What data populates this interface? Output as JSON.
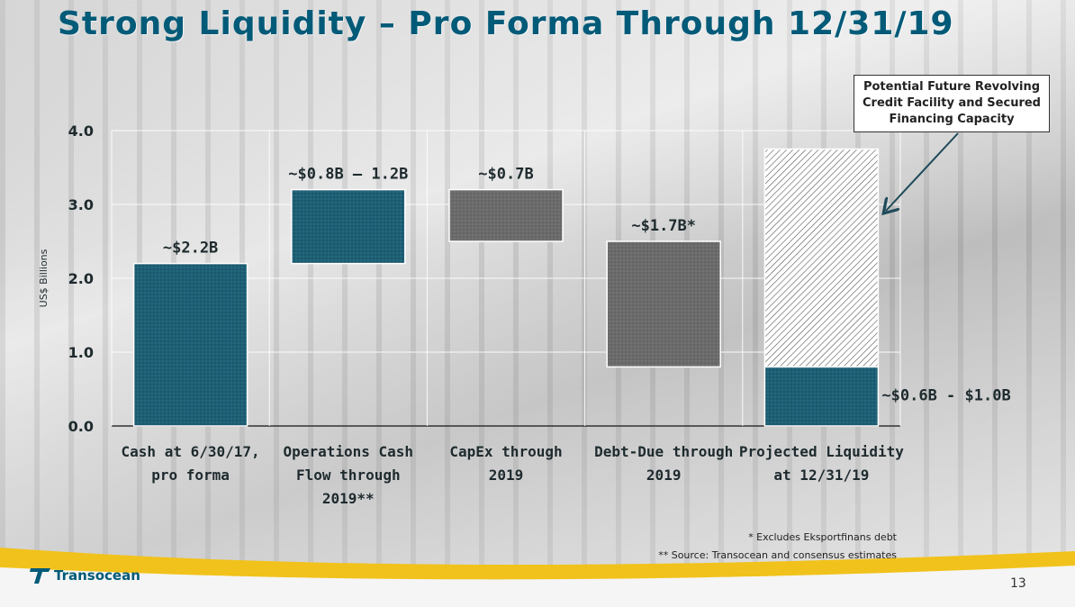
{
  "slide": {
    "title": "Strong Liquidity – Pro Forma Through 12/31/19",
    "callout": "Potential Future Revolving Credit Facility and Secured Financing Capacity",
    "footnotes": [
      "* Excludes Eksportfinans debt",
      "** Source: Transocean and consensus estimates"
    ],
    "logo_text": "Transocean",
    "page_number": "13"
  },
  "colors": {
    "title": "#005a78",
    "positive_bar": "#1e5f74",
    "negative_bar": "#6b6b6b",
    "text": "#1e2a2e"
  },
  "chart_data": {
    "type": "bar",
    "subtype": "waterfall",
    "ylabel": "US$ Billions",
    "ylim": [
      0,
      4
    ],
    "yticks": [
      "0.0",
      "1.0",
      "2.0",
      "3.0",
      "4.0"
    ],
    "grid": true,
    "categories": [
      "Cash at 6/30/17, pro forma",
      "Operations Cash Flow through 2019**",
      "CapEx through 2019",
      "Debt-Due through 2019",
      "Projected Liquidity at 12/31/19"
    ],
    "category_lines": [
      [
        "Cash at 6/30/17,",
        "pro forma"
      ],
      [
        "Operations Cash",
        "Flow through",
        "2019**"
      ],
      [
        "CapEx through",
        "2019"
      ],
      [
        "Debt-Due through",
        "2019"
      ],
      [
        "Projected Liquidity",
        "at 12/31/19"
      ]
    ],
    "bars": [
      {
        "base": 0.0,
        "top": 2.2,
        "kind": "positive",
        "label": "~$2.2B"
      },
      {
        "base": 2.2,
        "top": 3.2,
        "kind": "positive",
        "label": "~$0.8B – 1.2B"
      },
      {
        "base": 2.5,
        "top": 3.2,
        "kind": "negative",
        "label": "~$0.7B"
      },
      {
        "base": 0.8,
        "top": 2.5,
        "kind": "negative",
        "label": "~$1.7B*"
      },
      {
        "base": 0.0,
        "top": 0.8,
        "kind": "positive",
        "label": "~$0.6B - $1.0B"
      }
    ],
    "capacity_bar": {
      "base": 0.8,
      "top": 3.75,
      "kind": "hatched"
    }
  }
}
